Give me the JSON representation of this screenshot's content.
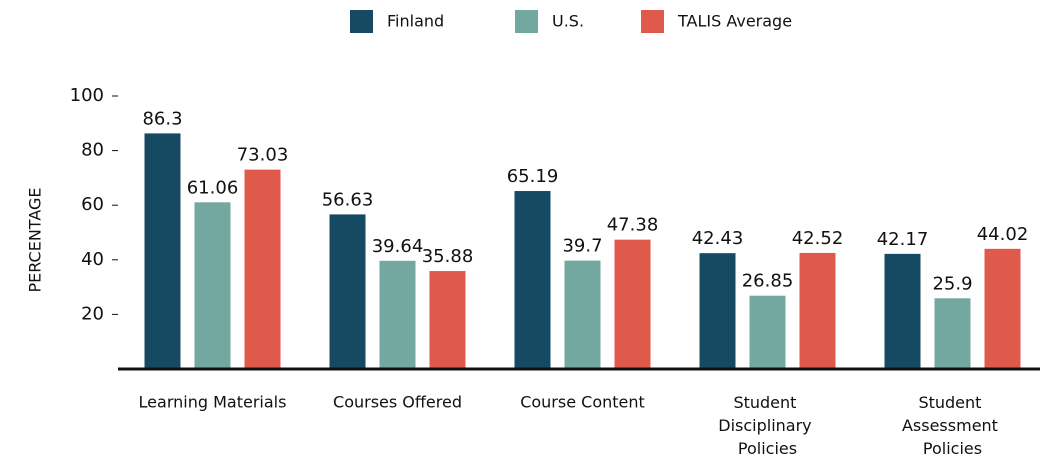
{
  "chart_data": {
    "type": "bar",
    "y_label": "PERCENTAGE",
    "categories": [
      "Learning Materials",
      "Courses Offered",
      "Course Content",
      "Student Disciplinary Policies",
      "Student Assessment Policies"
    ],
    "series": [
      {
        "name": "Finland",
        "color": "#164a63",
        "values": [
          86.3,
          56.63,
          65.19,
          42.43,
          42.17
        ]
      },
      {
        "name": "U.S.",
        "color": "#73a8a0",
        "values": [
          61.06,
          39.64,
          39.7,
          26.85,
          25.9
        ]
      },
      {
        "name": "TALIS Average",
        "color": "#e05a4b",
        "values": [
          73.03,
          35.88,
          47.38,
          42.52,
          44.02
        ]
      }
    ],
    "ylim": [
      0,
      100
    ],
    "yticks": [
      20,
      40,
      60,
      80,
      100
    ],
    "legend": "top",
    "grid": false
  }
}
